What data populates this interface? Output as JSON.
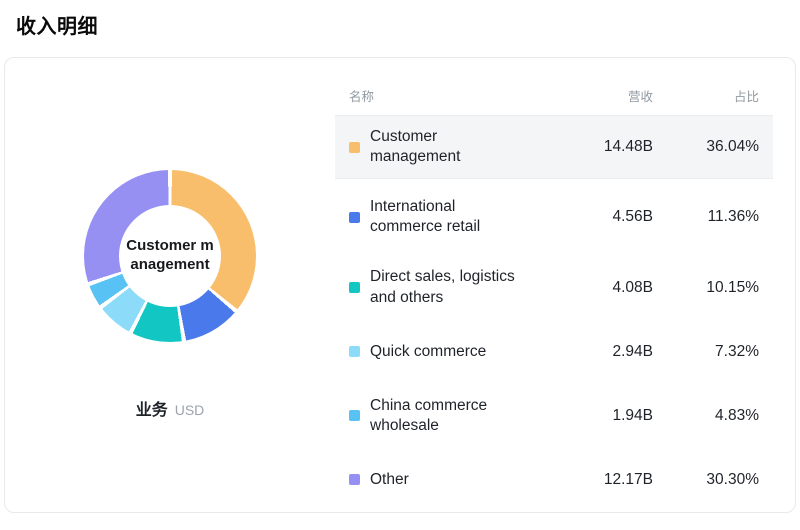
{
  "page": {
    "title": "收入明细"
  },
  "card": {
    "chart": {
      "center_label": "Customer management",
      "dimension_label": "业务",
      "unit_label": "USD"
    },
    "table": {
      "headers": {
        "name": "名称",
        "revenue": "营收",
        "share": "占比"
      },
      "rows": [
        {
          "name": "Customer management",
          "revenue": "14.48B",
          "share": "36.04%",
          "pct": 36.04,
          "color": "#F8BE6B",
          "active": true
        },
        {
          "name": "International commerce retail",
          "revenue": "4.56B",
          "share": "11.36%",
          "pct": 11.36,
          "color": "#4A79EC",
          "active": false
        },
        {
          "name": "Direct sales, logistics and others",
          "revenue": "4.08B",
          "share": "10.15%",
          "pct": 10.15,
          "color": "#12C7C3",
          "active": false
        },
        {
          "name": "Quick commerce",
          "revenue": "2.94B",
          "share": "7.32%",
          "pct": 7.32,
          "color": "#8CDBF8",
          "active": false
        },
        {
          "name": "China commerce wholesale",
          "revenue": "1.94B",
          "share": "4.83%",
          "pct": 4.83,
          "color": "#57C2F3",
          "active": false
        },
        {
          "name": "Other",
          "revenue": "12.17B",
          "share": "30.30%",
          "pct": 30.3,
          "color": "#9590F2",
          "active": false
        }
      ]
    }
  },
  "chart_data": {
    "type": "pie",
    "donut": true,
    "title": "收入明细",
    "unit": "USD (billions)",
    "legend_position": "right",
    "center_label": "Customer management",
    "categories": [
      "Customer management",
      "International commerce retail",
      "Direct sales, logistics and others",
      "Quick commerce",
      "China commerce wholesale",
      "Other"
    ],
    "values": [
      14.48,
      4.56,
      4.08,
      2.94,
      1.94,
      12.17
    ],
    "shares_pct": [
      36.04,
      11.36,
      10.15,
      7.32,
      4.83,
      30.3
    ],
    "colors": [
      "#F8BE6B",
      "#4A79EC",
      "#12C7C3",
      "#8CDBF8",
      "#57C2F3",
      "#9590F2"
    ]
  }
}
